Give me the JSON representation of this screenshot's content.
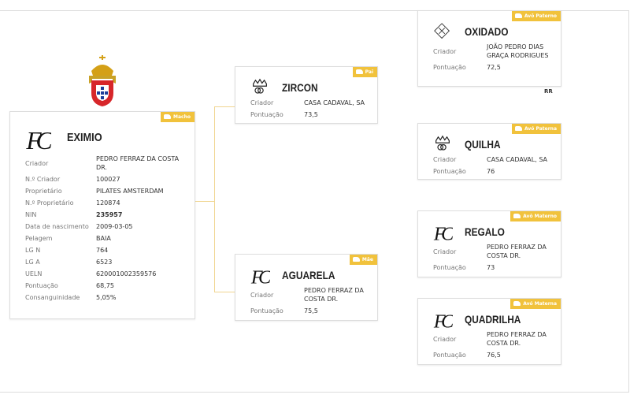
{
  "animal": {
    "badge": "Macho",
    "name": "EXIMIO",
    "fields": [
      {
        "label": "Criador",
        "value": "PEDRO FERRAZ DA COSTA DR."
      },
      {
        "label": "N.º Criador",
        "value": "100027"
      },
      {
        "label": "Proprietário",
        "value": "PILATES AMSTERDAM"
      },
      {
        "label": "N.º Proprietário",
        "value": "120874"
      },
      {
        "label": "NIN",
        "value": "235957"
      },
      {
        "label": "Data de nascimento",
        "value": "2009-03-05"
      },
      {
        "label": "Pelagem",
        "value": "BAIA"
      },
      {
        "label": "LG N",
        "value": "764"
      },
      {
        "label": "LG A",
        "value": "6523"
      },
      {
        "label": "UELN",
        "value": "620001002359576"
      },
      {
        "label": "Pontuação",
        "value": "68,75"
      },
      {
        "label": "Consanguinidade",
        "value": "5,05%"
      }
    ]
  },
  "parents": [
    {
      "badge": "Pai",
      "name": "ZIRCON",
      "fields": [
        {
          "label": "Criador",
          "value": "CASA CADAVAL, SA"
        },
        {
          "label": "Pontuação",
          "value": "73,5"
        }
      ]
    },
    {
      "badge": "Mãe",
      "name": "AGUARELA",
      "fields": [
        {
          "label": "Criador",
          "value": "PEDRO FERRAZ DA COSTA DR."
        },
        {
          "label": "Pontuação",
          "value": "75,5"
        }
      ]
    }
  ],
  "grandparents": [
    {
      "badge": "Avô Paterno",
      "name": "OXIDADO",
      "fields": [
        {
          "label": "Criador",
          "value": "JOÃO PEDRO DIAS GRAÇA RODRIGUES"
        },
        {
          "label": "Pontuação",
          "value": "72,5"
        }
      ],
      "note": "RR"
    },
    {
      "badge": "Avó Paterna",
      "name": "QUILHA",
      "fields": [
        {
          "label": "Criador",
          "value": "CASA CADAVAL, SA"
        },
        {
          "label": "Pontuação",
          "value": "76"
        }
      ]
    },
    {
      "badge": "Avô Materno",
      "name": "REGALO",
      "fields": [
        {
          "label": "Criador",
          "value": "PEDRO FERRAZ DA COSTA DR."
        },
        {
          "label": "Pontuação",
          "value": "73"
        }
      ]
    },
    {
      "badge": "Avó Materna",
      "name": "QUADRILHA",
      "fields": [
        {
          "label": "Criador",
          "value": "PEDRO FERRAZ DA COSTA DR."
        },
        {
          "label": "Pontuação",
          "value": "76,5"
        }
      ]
    }
  ]
}
